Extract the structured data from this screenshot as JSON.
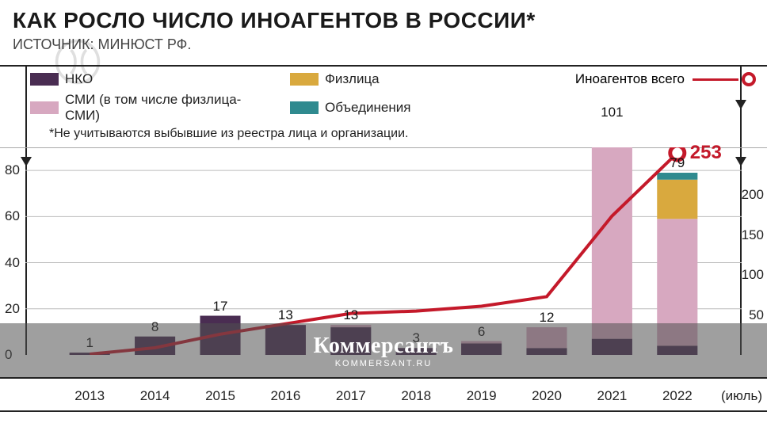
{
  "title": "КАК РОСЛО ЧИСЛО ИНОАГЕНТОВ В РОССИИ*",
  "source": "ИСТОЧНИК: МИНЮСТ РФ.",
  "footnote": "*Не учитываются выбывшие из реестра лица и организации.",
  "watermark": {
    "brand": "Коммерсантъ",
    "url": "KOMMERSANT.RU"
  },
  "legend": {
    "nko": "НКО",
    "smi": "СМИ (в том числе физлица-СМИ)",
    "fiz": "Физлица",
    "obed": "Объединения",
    "total": "Иноагентов всего"
  },
  "colors": {
    "nko": "#4a2d52",
    "smi": "#d7a8c0",
    "fiz": "#d9a93e",
    "obed": "#2f8a8f",
    "total_line": "#c4192a",
    "gridline": "#bcbcbc",
    "axis": "#222222",
    "background": "#ffffff"
  },
  "chart": {
    "type": "bar+line",
    "x_categories": [
      "2013",
      "2014",
      "2015",
      "2016",
      "2017",
      "2018",
      "2019",
      "2020",
      "2021",
      "2022"
    ],
    "x_suffix": "(июль)",
    "left_axis": {
      "min": 0,
      "max": 90,
      "ticks": [
        0,
        20,
        40,
        60,
        80
      ]
    },
    "right_axis": {
      "min": 0,
      "max": 260,
      "ticks": [
        50,
        100,
        150,
        200
      ]
    },
    "bar_totals": [
      1,
      8,
      17,
      13,
      13,
      3,
      6,
      12,
      101,
      79
    ],
    "stacks": [
      {
        "nko": 1,
        "smi": 0,
        "fiz": 0,
        "obed": 0
      },
      {
        "nko": 8,
        "smi": 0,
        "fiz": 0,
        "obed": 0
      },
      {
        "nko": 17,
        "smi": 0,
        "fiz": 0,
        "obed": 0
      },
      {
        "nko": 13,
        "smi": 0,
        "fiz": 0,
        "obed": 0
      },
      {
        "nko": 12,
        "smi": 1,
        "fiz": 0,
        "obed": 0
      },
      {
        "nko": 3,
        "smi": 0,
        "fiz": 0,
        "obed": 0
      },
      {
        "nko": 5,
        "smi": 1,
        "fiz": 0,
        "obed": 0
      },
      {
        "nko": 3,
        "smi": 9,
        "fiz": 0,
        "obed": 0
      },
      {
        "nko": 7,
        "smi": 85,
        "fiz": 2,
        "obed": 7
      },
      {
        "nko": 4,
        "smi": 55,
        "fiz": 17,
        "obed": 3
      }
    ],
    "cumulative_total": [
      1,
      9,
      26,
      39,
      52,
      55,
      61,
      73,
      174,
      253
    ],
    "line_end_label": "253",
    "bar_width_ratio": 0.62
  }
}
